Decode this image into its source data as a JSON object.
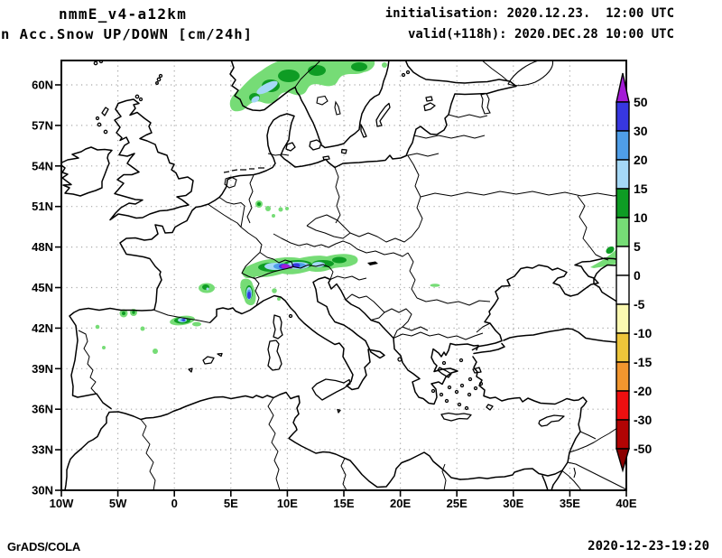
{
  "header": {
    "model": "nmmE_v4-a12km",
    "product": "n Acc.Snow UP/DOWN [cm/24h]",
    "init_line": "initialisation: 2020.12.23.  12:00 UTC",
    "valid_line": "valid(+118h): 2020.DEC.28 10:00 UTC"
  },
  "footer": {
    "left": "GrADS/COLA",
    "right": "2020-12-23-19:20"
  },
  "chart_data": {
    "type": "map",
    "title": "nmmE_v4-a12km Acc.Snow UP/DOWN [cm/24h]",
    "projection": "latlon",
    "domain": {
      "lon_min": -10,
      "lon_max": 40,
      "lat_min": 30,
      "lat_max": 61.8
    },
    "grid": {
      "shown": true,
      "style": "dotted",
      "lon_step_deg": 5,
      "lat_step_deg": 3,
      "grid_lons": [
        -5,
        0,
        5,
        10,
        15,
        20,
        25,
        30,
        35
      ],
      "grid_lats": [
        33,
        36,
        39,
        42,
        45,
        48,
        51,
        54,
        57,
        60
      ]
    },
    "x_axis": {
      "ticks": [
        {
          "label": "10W",
          "lon": -10
        },
        {
          "label": "5W",
          "lon": -5
        },
        {
          "label": "0",
          "lon": 0
        },
        {
          "label": "5E",
          "lon": 5
        },
        {
          "label": "10E",
          "lon": 10
        },
        {
          "label": "15E",
          "lon": 15
        },
        {
          "label": "20E",
          "lon": 20
        },
        {
          "label": "25E",
          "lon": 25
        },
        {
          "label": "30E",
          "lon": 30
        },
        {
          "label": "35E",
          "lon": 35
        },
        {
          "label": "40E",
          "lon": 40
        }
      ]
    },
    "y_axis": {
      "ticks": [
        {
          "label": "30N",
          "lat": 30
        },
        {
          "label": "33N",
          "lat": 33
        },
        {
          "label": "36N",
          "lat": 36
        },
        {
          "label": "39N",
          "lat": 39
        },
        {
          "label": "42N",
          "lat": 42
        },
        {
          "label": "45N",
          "lat": 45
        },
        {
          "label": "48N",
          "lat": 48
        },
        {
          "label": "51N",
          "lat": 51
        },
        {
          "label": "54N",
          "lat": 54
        },
        {
          "label": "57N",
          "lat": 57
        },
        {
          "label": "60N",
          "lat": 60
        }
      ]
    },
    "colorbar": {
      "units": "cm/24h",
      "boundary_labels": [
        "50",
        "30",
        "20",
        "15",
        "10",
        "5",
        "0",
        "-5",
        "-10",
        "-15",
        "-20",
        "-30",
        "-50"
      ],
      "band_colors_top_to_bottom": [
        "#3737e0",
        "#4f9ee8",
        "#a5d8f6",
        "#0e9c24",
        "#76dc76",
        "#ffffff",
        "#ffffff",
        "#fbf8b0",
        "#edc53a",
        "#f2962e",
        "#ee0f10",
        "#b20404"
      ],
      "over_color": "#a41bd6",
      "under_color": "#8c0000"
    },
    "palette": {
      "p50": "#a41bd6",
      "b3050": "#3737e0",
      "b2030": "#4f9ee8",
      "b1520": "#a5d8f6",
      "g1015": "#0e9c24",
      "g0510": "#76dc76",
      "white": "#ffffff",
      "cream": "#fbf8b0",
      "gold": "#edc53a",
      "orange": "#f2962e",
      "red": "#ee0f10",
      "darkred": "#b20404",
      "under": "#8c0000",
      "grid": "#a8a8a8"
    },
    "shaded_regions": [
      {
        "name": "southern-norway",
        "approx": "5-13E 58.5-62N",
        "max_band": "15-20"
      },
      {
        "name": "alps-main-ridge",
        "approx": "6.5-15E 46-47N",
        "max_band": ">50"
      },
      {
        "name": "french-alps",
        "approx": "6-7E 44-45N",
        "max_band": "30-50"
      },
      {
        "name": "massif-central",
        "approx": "2.5-3.5E 45N",
        "max_band": "15-20"
      },
      {
        "name": "pyrenees",
        "approx": "0-2E 42.5N",
        "max_band": "30-50"
      },
      {
        "name": "cantabrian-iberia-spots",
        "approx": "7W-2W 40-43N",
        "max_band": "10-15"
      },
      {
        "name": "central-germany-spots",
        "approx": "7-10E 50.5-51.5N",
        "max_band": "10-15"
      },
      {
        "name": "sw-romania-dash",
        "approx": "22.8E 45.3N",
        "max_band": "5-10"
      },
      {
        "name": "azov-northeast-wedge",
        "approx": "37-40E 47-49N",
        "max_band": "10-15"
      }
    ]
  }
}
